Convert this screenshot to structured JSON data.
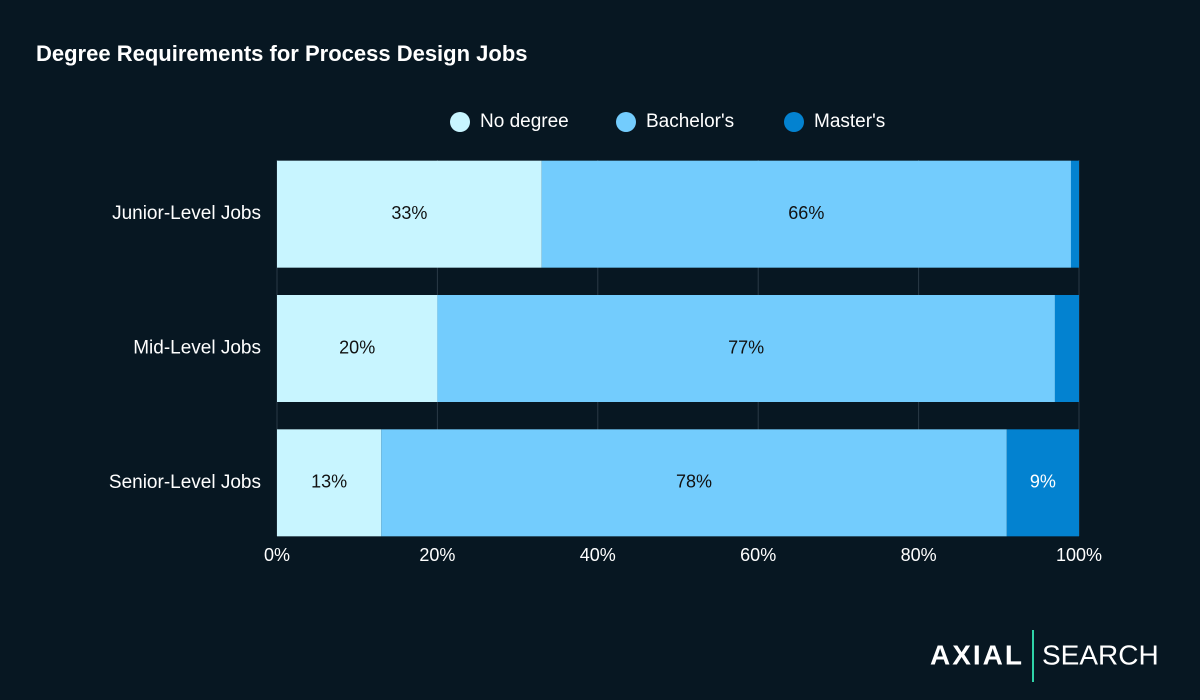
{
  "chart_data": {
    "type": "stacked-bar-horizontal",
    "title": "Degree Requirements for Process Design Jobs",
    "categories": [
      "Junior-Level Jobs",
      "Mid-Level Jobs",
      "Senior-Level Jobs"
    ],
    "series": [
      {
        "name": "No degree",
        "color": "#c8f5ff",
        "values": [
          33,
          20,
          13
        ],
        "value_labels": [
          "33%",
          "20%",
          "13%"
        ]
      },
      {
        "name": "Bachelor's",
        "color": "#73ccfd",
        "values": [
          66,
          77,
          78
        ],
        "value_labels": [
          "66%",
          "77%",
          "78%"
        ]
      },
      {
        "name": "Master's",
        "color": "#0382d0",
        "values": [
          1,
          3,
          9
        ],
        "value_labels": [
          null,
          null,
          "9%"
        ]
      }
    ],
    "xlim": [
      0,
      100
    ],
    "xticks": [
      {
        "value": 0,
        "label": "0%"
      },
      {
        "value": 20,
        "label": "20%"
      },
      {
        "value": 40,
        "label": "40%"
      },
      {
        "value": 60,
        "label": "60%"
      },
      {
        "value": 80,
        "label": "80%"
      },
      {
        "value": 100,
        "label": "100%"
      }
    ],
    "grid": true,
    "legend": "top"
  },
  "brand": {
    "left": "AXIAL",
    "right": "SEARCH"
  }
}
